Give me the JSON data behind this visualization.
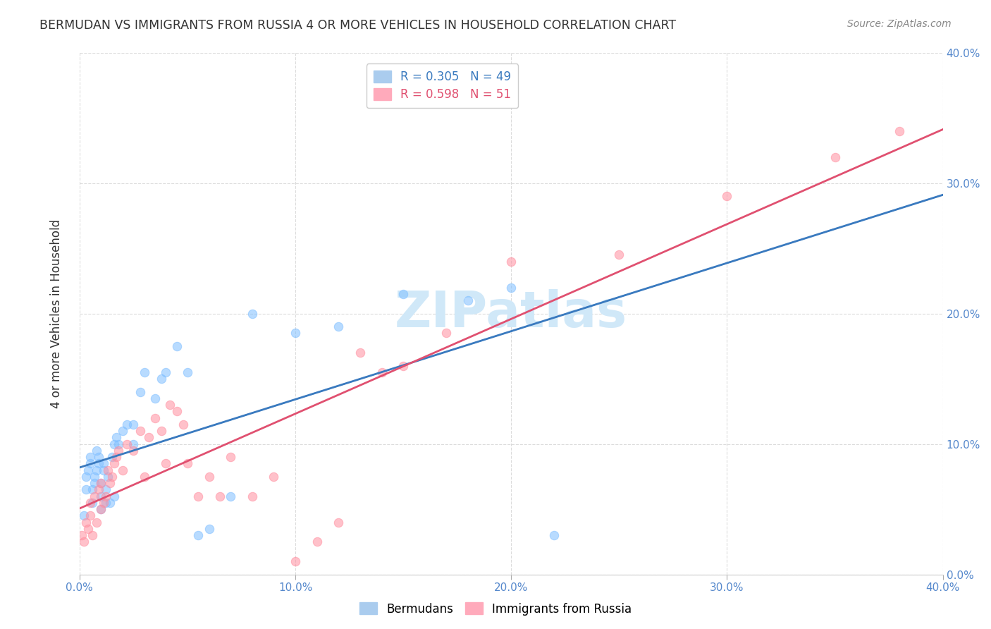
{
  "title": "BERMUDAN VS IMMIGRANTS FROM RUSSIA 4 OR MORE VEHICLES IN HOUSEHOLD CORRELATION CHART",
  "source": "Source: ZipAtlas.com",
  "ylabel": "4 or more Vehicles in Household",
  "xlim": [
    0.0,
    0.4
  ],
  "ylim": [
    0.0,
    0.4
  ],
  "ytick_labels": [
    "0.0%",
    "10.0%",
    "20.0%",
    "30.0%",
    "40.0%"
  ],
  "ytick_values": [
    0.0,
    0.1,
    0.2,
    0.3,
    0.4
  ],
  "xtick_labels": [
    "0.0%",
    "10.0%",
    "20.0%",
    "30.0%",
    "40.0%"
  ],
  "xtick_values": [
    0.0,
    0.1,
    0.2,
    0.3,
    0.4
  ],
  "bermudans_color": "#7fbfff",
  "russia_color": "#ff8fa0",
  "bermudans_line_color": "#3a7abf",
  "russia_line_color": "#e05070",
  "bermudans_dash_color": "#a0c4e8",
  "watermark": "ZIPatlas",
  "watermark_color": "#d0e8f8",
  "scatter_alpha": 0.55,
  "scatter_size": 80,
  "legend_R1": "R = 0.305",
  "legend_N1": "N = 49",
  "legend_R2": "R = 0.598",
  "legend_N2": "N = 51",
  "legend_color1": "#3a7abf",
  "legend_color2": "#e05070",
  "legend_patch1": "#aaccee",
  "legend_patch2": "#ffaabb",
  "bermudans_x": [
    0.002,
    0.003,
    0.003,
    0.004,
    0.005,
    0.005,
    0.006,
    0.006,
    0.007,
    0.007,
    0.008,
    0.008,
    0.009,
    0.009,
    0.01,
    0.01,
    0.01,
    0.011,
    0.011,
    0.012,
    0.012,
    0.013,
    0.014,
    0.015,
    0.016,
    0.016,
    0.017,
    0.018,
    0.02,
    0.022,
    0.025,
    0.025,
    0.028,
    0.03,
    0.035,
    0.038,
    0.04,
    0.045,
    0.05,
    0.055,
    0.06,
    0.07,
    0.08,
    0.1,
    0.12,
    0.15,
    0.18,
    0.2,
    0.22
  ],
  "bermudans_y": [
    0.045,
    0.065,
    0.075,
    0.08,
    0.085,
    0.09,
    0.055,
    0.065,
    0.07,
    0.075,
    0.08,
    0.095,
    0.085,
    0.09,
    0.05,
    0.06,
    0.07,
    0.08,
    0.085,
    0.055,
    0.065,
    0.075,
    0.055,
    0.09,
    0.06,
    0.1,
    0.105,
    0.1,
    0.11,
    0.115,
    0.1,
    0.115,
    0.14,
    0.155,
    0.135,
    0.15,
    0.155,
    0.175,
    0.155,
    0.03,
    0.035,
    0.06,
    0.2,
    0.185,
    0.19,
    0.215,
    0.21,
    0.22,
    0.03
  ],
  "russia_x": [
    0.001,
    0.002,
    0.003,
    0.004,
    0.005,
    0.005,
    0.006,
    0.007,
    0.008,
    0.009,
    0.01,
    0.01,
    0.011,
    0.012,
    0.013,
    0.014,
    0.015,
    0.016,
    0.017,
    0.018,
    0.02,
    0.022,
    0.025,
    0.028,
    0.03,
    0.032,
    0.035,
    0.038,
    0.04,
    0.042,
    0.045,
    0.048,
    0.05,
    0.055,
    0.06,
    0.065,
    0.07,
    0.08,
    0.09,
    0.1,
    0.11,
    0.12,
    0.13,
    0.14,
    0.15,
    0.17,
    0.2,
    0.25,
    0.3,
    0.35,
    0.38
  ],
  "russia_y": [
    0.03,
    0.025,
    0.04,
    0.035,
    0.055,
    0.045,
    0.03,
    0.06,
    0.04,
    0.065,
    0.05,
    0.07,
    0.055,
    0.06,
    0.08,
    0.07,
    0.075,
    0.085,
    0.09,
    0.095,
    0.08,
    0.1,
    0.095,
    0.11,
    0.075,
    0.105,
    0.12,
    0.11,
    0.085,
    0.13,
    0.125,
    0.115,
    0.085,
    0.06,
    0.075,
    0.06,
    0.09,
    0.06,
    0.075,
    0.01,
    0.025,
    0.04,
    0.17,
    0.155,
    0.16,
    0.185,
    0.24,
    0.245,
    0.29,
    0.32,
    0.34
  ]
}
